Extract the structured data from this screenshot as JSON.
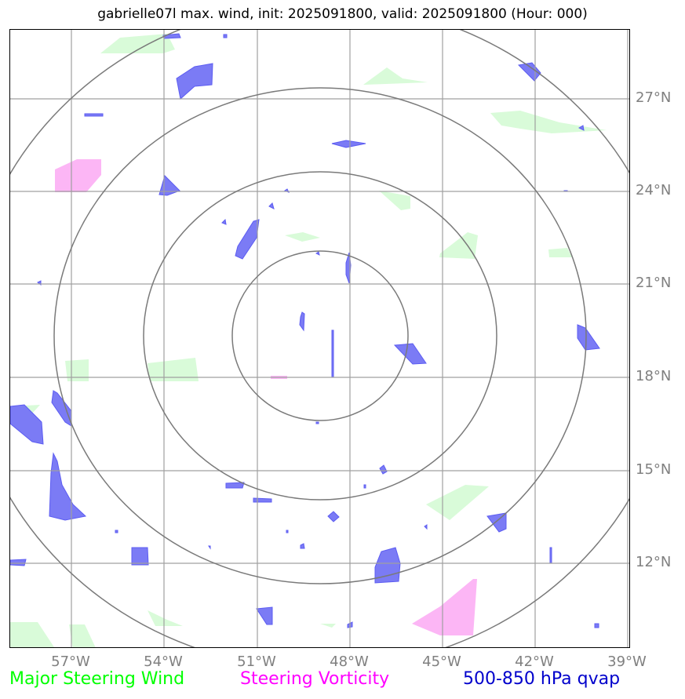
{
  "title": "gabrielle07l max. wind, init: 2025091800, valid: 2025091800 (Hour: 000)",
  "lat_labels": [
    "27°N",
    "24°N",
    "21°N",
    "18°N",
    "15°N",
    "12°N"
  ],
  "lon_labels": [
    "57°W",
    "54°W",
    "51°W",
    "48°W",
    "45°W",
    "42°W",
    "39°W"
  ],
  "legend": {
    "wind": "Major Steering Wind",
    "vorticity": "Steering Vorticity",
    "qvap": "500-850 hPa qvap"
  },
  "colors": {
    "wind": "#00ff00",
    "vorticity": "#ff00ff",
    "qvap": "#0000cc",
    "qvap_fill": "#7b7bf5",
    "wind_fill": "#d9fbd9",
    "vort_fill": "#fcb6f5",
    "grid": "#a0a0a0",
    "rings": "#7a7a7a",
    "axis_label": "#808080"
  }
}
